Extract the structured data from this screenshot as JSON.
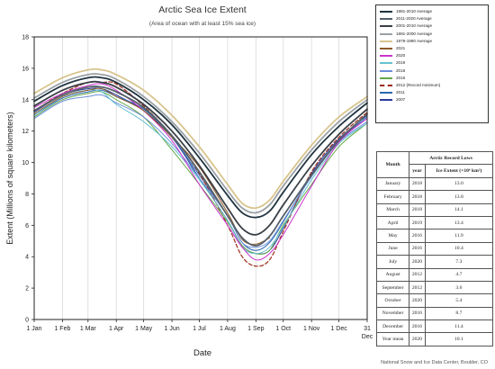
{
  "chart_data": {
    "type": "line",
    "title": "Arctic Sea Ice Extent",
    "subtitle": "(Area of ocean with at least 15% sea ice)",
    "xlabel": "Date",
    "ylabel": "Extent (Millions of square kilometers)",
    "ylim": [
      0,
      18
    ],
    "yticks": [
      0,
      2,
      4,
      6,
      8,
      10,
      12,
      14,
      16,
      18
    ],
    "xlim": [
      1,
      366
    ],
    "xticks": [
      {
        "label": "1 Jan",
        "day": 1
      },
      {
        "label": "1 Feb",
        "day": 32
      },
      {
        "label": "1 Mar",
        "day": 60
      },
      {
        "label": "1 Apr",
        "day": 91
      },
      {
        "label": "1 May",
        "day": 121
      },
      {
        "label": "1 Jun",
        "day": 152
      },
      {
        "label": "1 Jul",
        "day": 182
      },
      {
        "label": "1 Aug",
        "day": 213
      },
      {
        "label": "1 Sep",
        "day": 244
      },
      {
        "label": "1 Oct",
        "day": 274
      },
      {
        "label": "1 Nov",
        "day": 305
      },
      {
        "label": "1 Dec",
        "day": 335
      },
      {
        "label": "31 Dec",
        "day": 366
      }
    ],
    "grid": "vertical",
    "legend_position": "top-right",
    "x": [
      1,
      32,
      60,
      75,
      91,
      121,
      152,
      182,
      213,
      229,
      244,
      259,
      274,
      305,
      335,
      366
    ],
    "series": [
      {
        "name": "1981-2010 Average",
        "color": "#1f3340",
        "dashed": false,
        "width": 1.8,
        "values": [
          13.9,
          14.9,
          15.4,
          15.4,
          15.1,
          14.0,
          12.4,
          10.3,
          7.9,
          6.8,
          6.5,
          6.9,
          8.1,
          10.5,
          12.3,
          13.8
        ]
      },
      {
        "name": "2011-2020 Average",
        "color": "#56606a",
        "dashed": false,
        "width": 1.8,
        "values": [
          13.3,
          14.3,
          14.8,
          14.8,
          14.5,
          13.5,
          11.7,
          9.4,
          6.6,
          5.2,
          4.7,
          5.3,
          6.6,
          9.2,
          11.4,
          13.1
        ]
      },
      {
        "name": "2001-2010 Average",
        "color": "#3a3f47",
        "dashed": false,
        "width": 1.8,
        "values": [
          13.6,
          14.6,
          15.1,
          15.1,
          14.8,
          13.7,
          12.0,
          9.8,
          7.1,
          5.8,
          5.4,
          6.0,
          7.3,
          9.8,
          11.8,
          13.4
        ]
      },
      {
        "name": "1991-2000 Average",
        "color": "#9aa0a6",
        "dashed": false,
        "width": 1.8,
        "values": [
          14.1,
          15.1,
          15.6,
          15.6,
          15.3,
          14.2,
          12.6,
          10.6,
          8.2,
          7.1,
          6.8,
          7.3,
          8.5,
          10.8,
          12.6,
          14.0
        ]
      },
      {
        "name": "1979-1990 Average",
        "color": "#d8c48c",
        "dashed": false,
        "width": 1.8,
        "values": [
          14.4,
          15.4,
          15.9,
          15.9,
          15.6,
          14.6,
          13.0,
          11.0,
          8.6,
          7.4,
          7.1,
          7.6,
          8.8,
          11.1,
          12.9,
          14.2
        ]
      },
      {
        "name": "2021",
        "color": "#8c5a2b",
        "dashed": false,
        "width": 1,
        "values": [
          13.1,
          14.2,
          14.6,
          14.7,
          14.2,
          13.3,
          11.6,
          9.7,
          6.8,
          5.1,
          4.8,
          5.2,
          null,
          null,
          null,
          null
        ]
      },
      {
        "name": "2020",
        "color": "#cc33cc",
        "dashed": false,
        "width": 1,
        "values": [
          13.5,
          14.4,
          14.9,
          15.0,
          14.6,
          13.3,
          11.4,
          8.6,
          6.0,
          4.6,
          3.8,
          4.2,
          5.4,
          8.5,
          11.3,
          12.8
        ]
      },
      {
        "name": "2019",
        "color": "#66c2d1",
        "dashed": false,
        "width": 1,
        "values": [
          13.0,
          14.2,
          14.6,
          14.5,
          13.7,
          12.6,
          11.0,
          8.9,
          6.3,
          4.6,
          4.2,
          4.6,
          5.9,
          8.9,
          11.2,
          12.5
        ]
      },
      {
        "name": "2018",
        "color": "#6a8fd8",
        "dashed": false,
        "width": 1,
        "values": [
          12.8,
          13.9,
          14.2,
          14.3,
          13.8,
          12.9,
          11.2,
          9.0,
          6.6,
          4.9,
          4.6,
          5.0,
          6.3,
          9.1,
          11.3,
          12.6
        ]
      },
      {
        "name": "2016",
        "color": "#66a84a",
        "dashed": false,
        "width": 1,
        "values": [
          12.9,
          14.0,
          14.4,
          14.5,
          14.0,
          12.9,
          10.8,
          8.6,
          6.2,
          4.7,
          4.2,
          4.4,
          6.0,
          8.6,
          11.0,
          12.5
        ]
      },
      {
        "name": "2012 (Record minimum)",
        "color": "#9b2c1c",
        "dashed": true,
        "width": 1.2,
        "values": [
          13.3,
          14.4,
          15.1,
          15.1,
          15.0,
          13.6,
          11.7,
          9.3,
          6.0,
          4.0,
          3.4,
          3.8,
          5.6,
          9.4,
          11.6,
          13.2
        ]
      },
      {
        "name": "2011",
        "color": "#2a6ab0",
        "dashed": false,
        "width": 1,
        "values": [
          13.0,
          14.1,
          14.5,
          14.6,
          14.2,
          13.4,
          11.6,
          9.2,
          6.6,
          4.9,
          4.4,
          4.9,
          6.2,
          9.2,
          11.4,
          12.9
        ]
      },
      {
        "name": "2007",
        "color": "#2b3a99",
        "dashed": false,
        "width": 1,
        "values": [
          13.2,
          14.3,
          14.7,
          14.7,
          14.3,
          13.3,
          11.6,
          9.0,
          6.3,
          4.7,
          4.2,
          4.4,
          5.8,
          9.3,
          11.5,
          13.0
        ]
      }
    ]
  },
  "record_table": {
    "caption": "Arctic Record Lows",
    "col_month": "Month",
    "col_year": "year",
    "col_extent": "Ice Extent (×10⁶ km²)",
    "rows": [
      {
        "month": "January",
        "year": "2018",
        "extent": "13.0"
      },
      {
        "month": "February",
        "year": "2018",
        "extent": "13.8"
      },
      {
        "month": "March",
        "year": "2018",
        "extent": "14.1"
      },
      {
        "month": "April",
        "year": "2019",
        "extent": "13.4"
      },
      {
        "month": "May",
        "year": "2016",
        "extent": "11.9"
      },
      {
        "month": "June",
        "year": "2016",
        "extent": "10.4"
      },
      {
        "month": "July",
        "year": "2020",
        "extent": "7.3"
      },
      {
        "month": "August",
        "year": "2012",
        "extent": "4.7"
      },
      {
        "month": "September",
        "year": "2012",
        "extent": "3.6"
      },
      {
        "month": "October",
        "year": "2020",
        "extent": "5.4"
      },
      {
        "month": "November",
        "year": "2016",
        "extent": "8.7"
      },
      {
        "month": "December",
        "year": "2016",
        "extent": "11.4"
      },
      {
        "month": "Year mean",
        "year": "2020",
        "extent": "10.1"
      }
    ]
  },
  "credit": "National Snow and Ice Data Center, Boulder, CO"
}
